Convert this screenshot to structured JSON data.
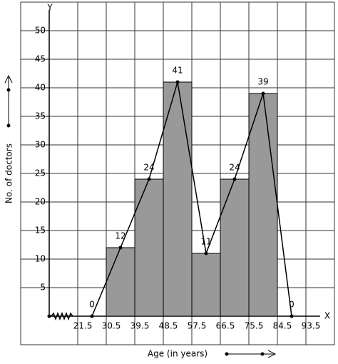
{
  "chart_data": {
    "type": "histogram",
    "x_label": "Age (in years)",
    "y_label": "No. of doctors",
    "x_axis_name": "X",
    "y_axis_name": "Y",
    "bins": [
      30.5,
      39.5,
      48.5,
      57.5,
      66.5,
      75.5,
      84.5
    ],
    "counts": [
      12,
      24,
      41,
      11,
      24,
      39
    ],
    "bar_color": "#999999",
    "polygon": {
      "x": [
        26,
        35,
        44,
        53,
        62,
        71,
        80,
        89
      ],
      "values": [
        0,
        12,
        24,
        41,
        11,
        24,
        39,
        0
      ],
      "color": "#000000"
    },
    "xlim": [
      12.5,
      102.5
    ],
    "ylim": [
      0,
      50
    ],
    "xticks": [
      21.5,
      30.5,
      39.5,
      48.5,
      57.5,
      66.5,
      75.5,
      84.5,
      93.5
    ],
    "yticks": [
      5,
      10,
      15,
      20,
      25,
      30,
      35,
      40,
      45,
      50
    ],
    "grid": true
  }
}
